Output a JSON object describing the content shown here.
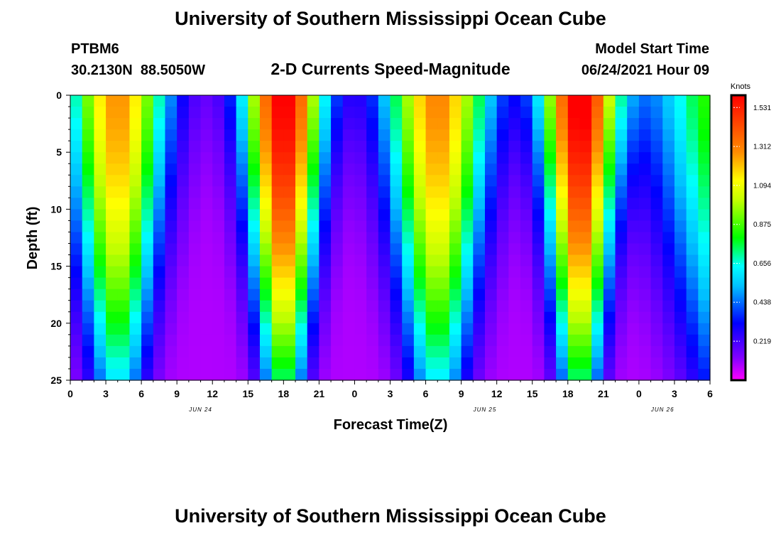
{
  "chart_data": {
    "type": "heatmap",
    "title": "University of Southern Mississippi Ocean Cube",
    "footer_title": "University of Southern Mississippi Ocean Cube",
    "station": "PTBM6",
    "coordinates": "30.2130N  88.5050W",
    "subtitle": "2-D Currents Speed-Magnitude",
    "model_start_label": "Model Start Time",
    "model_start_value": "06/24/2021 Hour 09",
    "xlabel": "Forecast Time(Z)",
    "ylabel": "Depth (ft)",
    "x_ticks": [
      "0",
      "3",
      "6",
      "9",
      "12",
      "15",
      "18",
      "21",
      "0",
      "3",
      "6",
      "9",
      "12",
      "15",
      "18",
      "21",
      "0",
      "3",
      "6"
    ],
    "x_range_hours": [
      0,
      54
    ],
    "date_labels": [
      {
        "text": "JUN 24",
        "hour": 11
      },
      {
        "text": "JUN 25",
        "hour": 35
      },
      {
        "text": "JUN 26",
        "hour": 50
      }
    ],
    "y_ticks": [
      "0",
      "5",
      "10",
      "15",
      "20",
      "25"
    ],
    "y_range_ft": [
      0,
      25
    ],
    "colorbar": {
      "unit": "Knots",
      "ticks": [
        "1.531",
        "1.312",
        "1.094",
        "0.875",
        "0.656",
        "0.438",
        "0.219"
      ],
      "range": [
        0,
        1.6
      ]
    },
    "grid": {
      "columns": 54,
      "rows": 25,
      "time_step_hours": 1,
      "depth_step_ft": 1
    }
  }
}
